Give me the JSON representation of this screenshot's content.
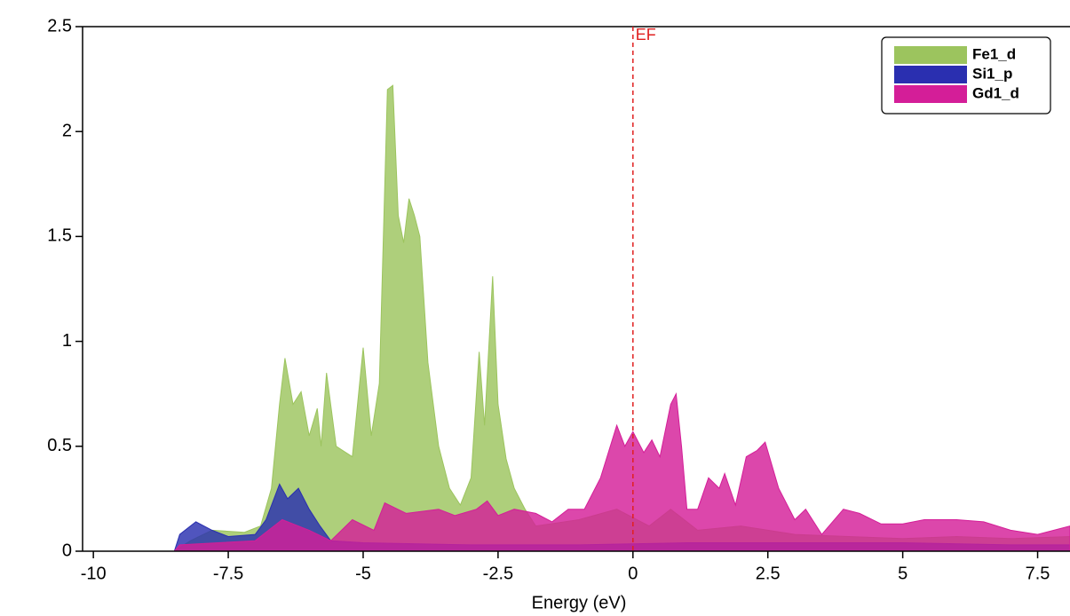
{
  "chart_data": {
    "type": "area",
    "xlabel": "Energy (eV)",
    "xlim": [
      -10.2,
      8.1
    ],
    "ylim": [
      0,
      2.5
    ],
    "xticks": [
      -10,
      -7.5,
      -5,
      -2.5,
      0,
      2.5,
      5,
      7.5
    ],
    "yticks": [
      0,
      0.5,
      1,
      1.5,
      2,
      2.5
    ],
    "legend": "upper right",
    "annotation": {
      "x": 0,
      "label": "EF",
      "color": "#e02020"
    },
    "series": [
      {
        "name": "Fe1_d",
        "color": "#9cc45e",
        "x": [
          -10,
          -8.5,
          -8.2,
          -7.8,
          -7.2,
          -6.9,
          -6.7,
          -6.55,
          -6.45,
          -6.3,
          -6.15,
          -6.0,
          -5.85,
          -5.78,
          -5.68,
          -5.5,
          -5.2,
          -5.0,
          -4.85,
          -4.7,
          -4.55,
          -4.45,
          -4.35,
          -4.25,
          -4.15,
          -4.05,
          -3.95,
          -3.8,
          -3.6,
          -3.4,
          -3.2,
          -3.0,
          -2.85,
          -2.75,
          -2.6,
          -2.5,
          -2.35,
          -2.2,
          -2.0,
          -1.8,
          -1.0,
          -0.3,
          0.3,
          0.7,
          1.2,
          2.0,
          3.0,
          4.0,
          5.0,
          6.0,
          7.0,
          8.1
        ],
        "values": [
          0,
          0,
          0.05,
          0.1,
          0.09,
          0.12,
          0.3,
          0.7,
          0.92,
          0.7,
          0.76,
          0.55,
          0.68,
          0.5,
          0.85,
          0.5,
          0.45,
          0.97,
          0.55,
          0.8,
          2.2,
          2.22,
          1.6,
          1.47,
          1.68,
          1.6,
          1.5,
          0.9,
          0.5,
          0.3,
          0.22,
          0.35,
          0.95,
          0.6,
          1.31,
          0.7,
          0.44,
          0.3,
          0.2,
          0.12,
          0.15,
          0.2,
          0.12,
          0.2,
          0.1,
          0.12,
          0.08,
          0.07,
          0.06,
          0.07,
          0.06,
          0.07
        ]
      },
      {
        "name": "Si1_p",
        "color": "#2a2fb0",
        "x": [
          -10,
          -8.5,
          -8.4,
          -8.1,
          -7.8,
          -7.5,
          -7.0,
          -6.8,
          -6.55,
          -6.4,
          -6.2,
          -6.0,
          -5.8,
          -5.6,
          -5.0,
          -3.0,
          -1.0,
          1.0,
          3.0,
          5.0,
          7.0,
          8.1
        ],
        "values": [
          0,
          0,
          0.08,
          0.14,
          0.1,
          0.07,
          0.08,
          0.15,
          0.32,
          0.25,
          0.3,
          0.2,
          0.12,
          0.05,
          0.04,
          0.03,
          0.03,
          0.04,
          0.04,
          0.04,
          0.03,
          0.03
        ]
      },
      {
        "name": "Gd1_d",
        "color": "#d41e98",
        "x": [
          -10,
          -8.5,
          -8.4,
          -7.0,
          -6.5,
          -6.0,
          -5.6,
          -5.2,
          -4.8,
          -4.6,
          -4.2,
          -3.6,
          -3.3,
          -2.9,
          -2.7,
          -2.5,
          -2.2,
          -1.8,
          -1.5,
          -1.2,
          -0.9,
          -0.6,
          -0.3,
          -0.15,
          0,
          0.2,
          0.35,
          0.5,
          0.7,
          0.8,
          0.9,
          1.0,
          1.2,
          1.4,
          1.6,
          1.7,
          1.9,
          2.1,
          2.3,
          2.45,
          2.7,
          3.0,
          3.2,
          3.5,
          3.9,
          4.2,
          4.6,
          5.0,
          5.4,
          6.0,
          6.5,
          7.0,
          7.5,
          8.1
        ],
        "values": [
          0,
          0,
          0.03,
          0.05,
          0.15,
          0.1,
          0.05,
          0.15,
          0.1,
          0.23,
          0.18,
          0.2,
          0.17,
          0.2,
          0.24,
          0.17,
          0.2,
          0.18,
          0.14,
          0.2,
          0.2,
          0.35,
          0.6,
          0.5,
          0.57,
          0.47,
          0.53,
          0.45,
          0.7,
          0.75,
          0.5,
          0.2,
          0.2,
          0.35,
          0.3,
          0.37,
          0.22,
          0.45,
          0.48,
          0.52,
          0.3,
          0.15,
          0.2,
          0.08,
          0.2,
          0.18,
          0.13,
          0.13,
          0.15,
          0.15,
          0.14,
          0.1,
          0.08,
          0.12
        ]
      }
    ]
  }
}
